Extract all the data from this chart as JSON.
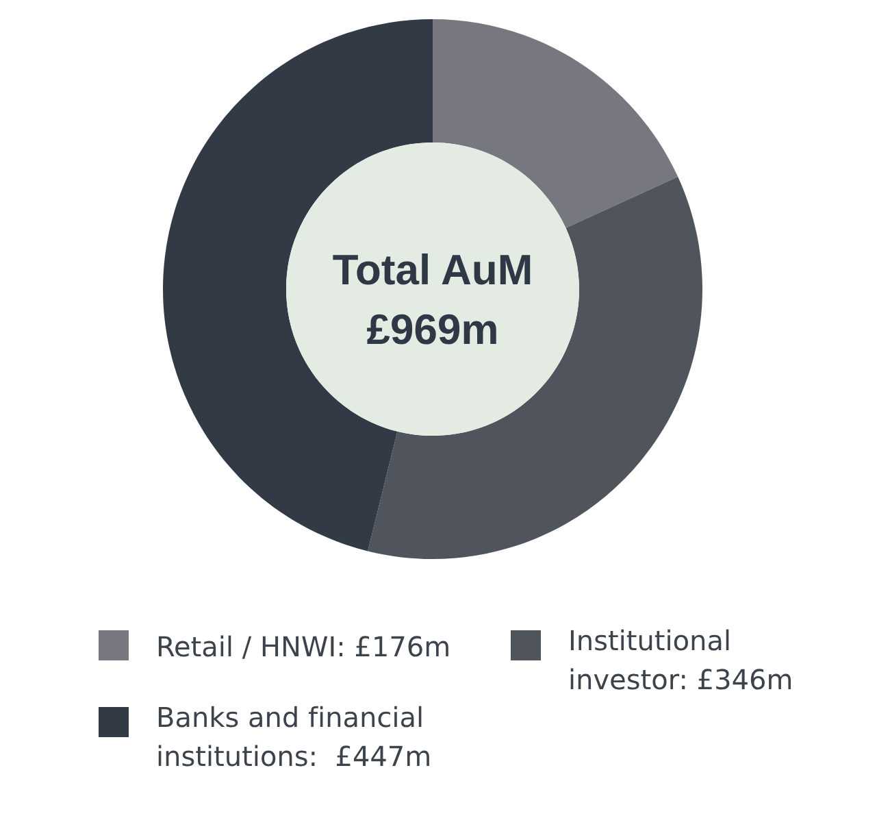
{
  "chart_data": {
    "type": "donut",
    "title": "Total AuM £969m",
    "categories": [
      "Retail / HNWI: £176m",
      "Institutional investor: £346m",
      "Banks and financial institutions:  £447m"
    ],
    "values": [
      176,
      346,
      447
    ],
    "colors": [
      "#77777f",
      "#50545c",
      "#323b45"
    ],
    "legend": "bottom"
  }
}
